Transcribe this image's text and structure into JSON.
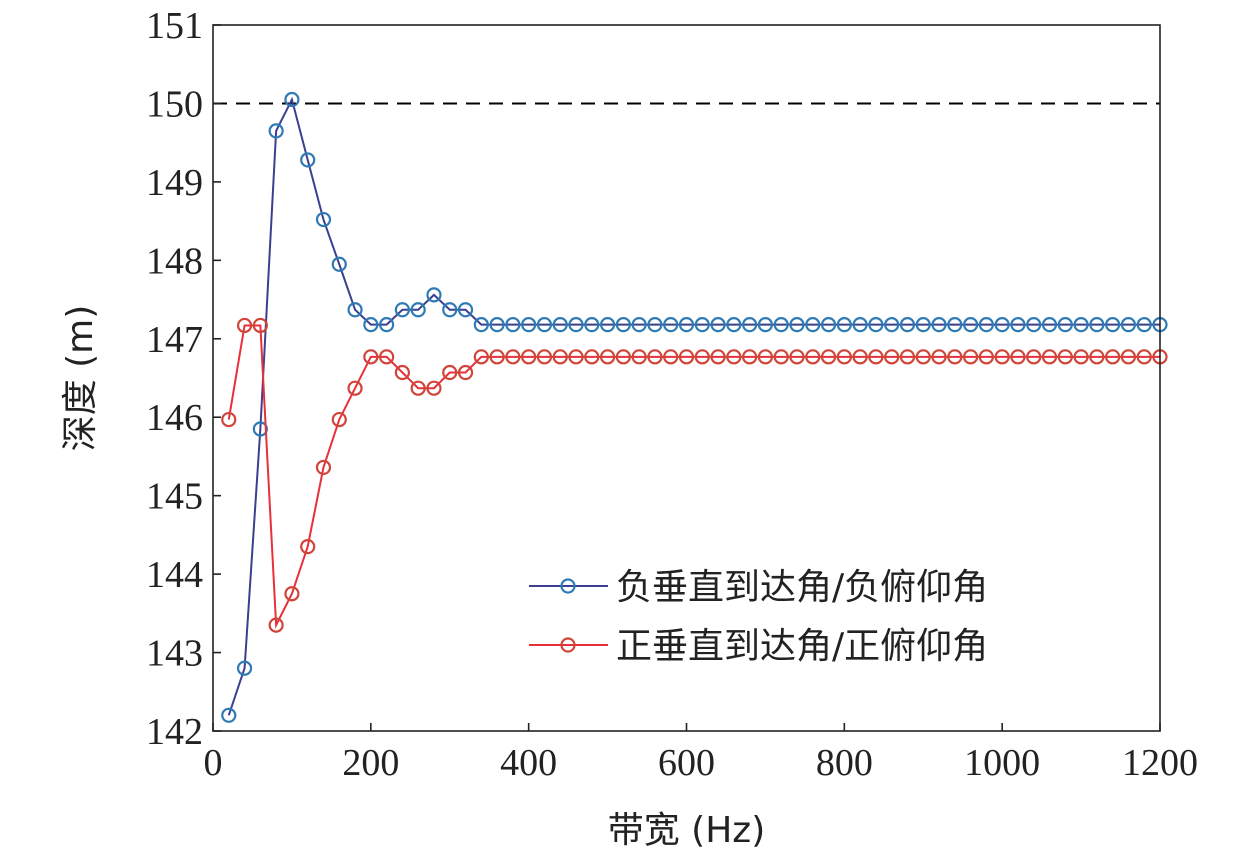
{
  "chart_data": {
    "type": "line",
    "xlabel": "带宽 (Hz)",
    "ylabel": "深度 (m)",
    "xlim": [
      0,
      1200
    ],
    "ylim": [
      142,
      151
    ],
    "x_ticks": [
      "0",
      "200",
      "400",
      "600",
      "800",
      "1000",
      "1200"
    ],
    "y_ticks": [
      "142",
      "143",
      "144",
      "145",
      "146",
      "147",
      "148",
      "149",
      "150",
      "151"
    ],
    "grid": false,
    "legend_position": "center-right",
    "reference_line": {
      "y": 150,
      "style": "dashed",
      "color": "#000000"
    },
    "x": [
      20,
      40,
      60,
      80,
      100,
      120,
      140,
      160,
      180,
      200,
      220,
      240,
      260,
      280,
      300,
      320,
      340,
      360,
      380,
      400,
      420,
      440,
      460,
      480,
      500,
      520,
      540,
      560,
      580,
      600,
      620,
      640,
      660,
      680,
      700,
      720,
      740,
      760,
      780,
      800,
      820,
      840,
      860,
      880,
      900,
      920,
      940,
      960,
      980,
      1000,
      1020,
      1040,
      1060,
      1080,
      1100,
      1120,
      1140,
      1160,
      1180,
      1200
    ],
    "series": [
      {
        "name": "负垂直到达角/负俯仰角",
        "line_color": "#3b3f8f",
        "marker_color": "#2e7ab5",
        "values": [
          142.2,
          142.8,
          145.85,
          149.65,
          150.05,
          149.28,
          148.52,
          147.95,
          147.37,
          147.18,
          147.18,
          147.37,
          147.37,
          147.56,
          147.37,
          147.37,
          147.18,
          147.18,
          147.18,
          147.18,
          147.18,
          147.18,
          147.18,
          147.18,
          147.18,
          147.18,
          147.18,
          147.18,
          147.18,
          147.18,
          147.18,
          147.18,
          147.18,
          147.18,
          147.18,
          147.18,
          147.18,
          147.18,
          147.18,
          147.18,
          147.18,
          147.18,
          147.18,
          147.18,
          147.18,
          147.18,
          147.18,
          147.18,
          147.18,
          147.18,
          147.18,
          147.18,
          147.18,
          147.18,
          147.18,
          147.18,
          147.18,
          147.18,
          147.18,
          147.18
        ]
      },
      {
        "name": "正垂直到达角/正俯仰角",
        "line_color": "#e8303a",
        "marker_color": "#d0443a",
        "values": [
          145.97,
          147.17,
          147.17,
          143.35,
          143.75,
          144.35,
          145.36,
          145.97,
          146.37,
          146.77,
          146.77,
          146.57,
          146.37,
          146.37,
          146.57,
          146.57,
          146.77,
          146.77,
          146.77,
          146.77,
          146.77,
          146.77,
          146.77,
          146.77,
          146.77,
          146.77,
          146.77,
          146.77,
          146.77,
          146.77,
          146.77,
          146.77,
          146.77,
          146.77,
          146.77,
          146.77,
          146.77,
          146.77,
          146.77,
          146.77,
          146.77,
          146.77,
          146.77,
          146.77,
          146.77,
          146.77,
          146.77,
          146.77,
          146.77,
          146.77,
          146.77,
          146.77,
          146.77,
          146.77,
          146.77,
          146.77,
          146.77,
          146.77,
          146.77,
          146.77
        ]
      }
    ]
  }
}
